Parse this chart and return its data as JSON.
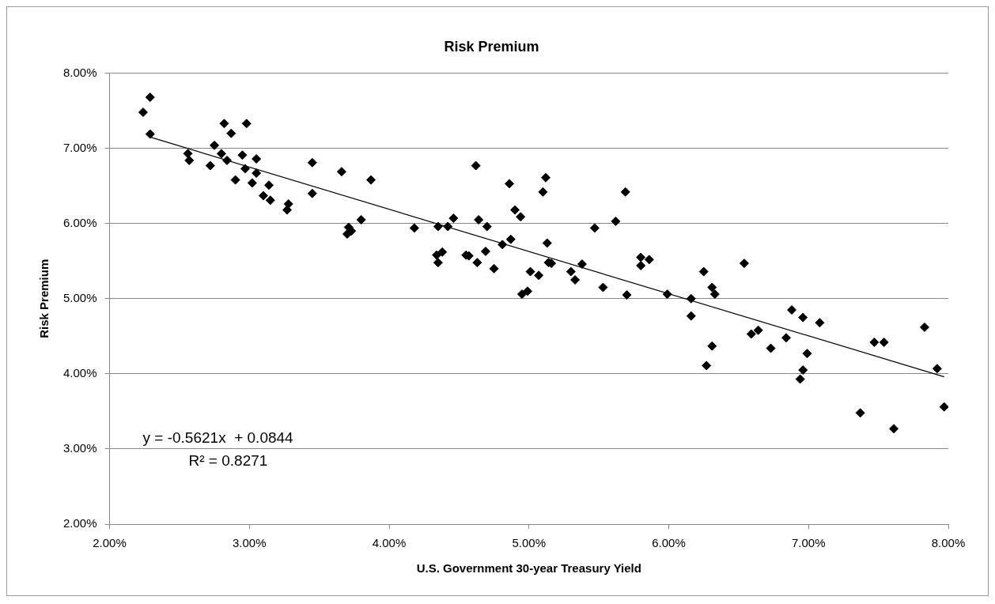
{
  "chart_data": {
    "type": "scatter",
    "title": "Risk Premium",
    "xlabel": "U.S. Government 30-year Treasury Yield",
    "ylabel": "Risk Premium",
    "xlim": [
      2,
      8
    ],
    "ylim": [
      2,
      8
    ],
    "xticks": [
      {
        "value": 2,
        "label": "2.00%"
      },
      {
        "value": 3,
        "label": "3.00%"
      },
      {
        "value": 4,
        "label": "4.00%"
      },
      {
        "value": 5,
        "label": "5.00%"
      },
      {
        "value": 6,
        "label": "6.00%"
      },
      {
        "value": 7,
        "label": "7.00%"
      },
      {
        "value": 8,
        "label": "8.00%"
      }
    ],
    "yticks": [
      {
        "value": 2,
        "label": "2.00%"
      },
      {
        "value": 3,
        "label": "3.00%"
      },
      {
        "value": 4,
        "label": "4.00%"
      },
      {
        "value": 5,
        "label": "5.00%"
      },
      {
        "value": 6,
        "label": "6.00%"
      },
      {
        "value": 7,
        "label": "7.00%"
      },
      {
        "value": 8,
        "label": "8.00%"
      }
    ],
    "grid": "y",
    "legend": false,
    "marker": "diamond",
    "annotations": [
      "y = -0.5621x  + 0.0844",
      "R² = 0.8271"
    ],
    "series": [
      {
        "type": "scatter",
        "color": "#000000",
        "x": [
          2.29,
          2.24,
          2.29,
          2.56,
          2.57,
          2.72,
          2.75,
          2.8,
          2.84,
          2.82,
          2.87,
          2.98,
          2.95,
          2.97,
          2.9,
          3.05,
          3.05,
          3.02,
          3.14,
          3.1,
          3.15,
          3.28,
          3.27,
          3.45,
          3.45,
          3.66,
          3.87,
          3.8,
          3.71,
          3.7,
          3.73,
          4.18,
          4.35,
          4.42,
          4.46,
          4.34,
          4.35,
          4.38,
          4.57,
          4.55,
          4.63,
          4.62,
          4.64,
          4.7,
          4.69,
          4.75,
          4.81,
          4.86,
          4.87,
          4.9,
          4.94,
          4.95,
          4.99,
          5.01,
          5.07,
          5.1,
          5.12,
          5.13,
          5.14,
          5.16,
          5.3,
          5.33,
          5.38,
          5.47,
          5.53,
          5.62,
          5.69,
          5.7,
          5.8,
          5.8,
          5.86,
          5.99,
          6.16,
          6.16,
          6.25,
          6.27,
          6.31,
          6.31,
          6.33,
          6.54,
          6.59,
          6.64,
          6.73,
          6.84,
          6.88,
          6.94,
          6.96,
          6.96,
          6.99,
          7.08,
          7.37,
          7.47,
          7.54,
          7.61,
          7.83,
          7.92,
          7.97
        ],
        "values": [
          7.68,
          7.48,
          7.19,
          6.93,
          6.84,
          6.77,
          7.04,
          6.93,
          6.84,
          7.33,
          7.2,
          7.33,
          6.91,
          6.73,
          6.58,
          6.86,
          6.67,
          6.54,
          6.51,
          6.37,
          6.31,
          6.26,
          6.18,
          6.81,
          6.4,
          6.69,
          6.58,
          6.05,
          5.95,
          5.86,
          5.9,
          5.94,
          5.96,
          5.96,
          6.07,
          5.58,
          5.48,
          5.62,
          5.57,
          5.58,
          5.48,
          6.77,
          6.05,
          5.96,
          5.63,
          5.4,
          5.72,
          6.53,
          5.79,
          6.18,
          6.09,
          5.06,
          5.1,
          5.36,
          5.31,
          6.42,
          6.61,
          5.74,
          5.48,
          5.47,
          5.36,
          5.25,
          5.46,
          5.94,
          5.15,
          6.03,
          6.42,
          5.05,
          5.55,
          5.44,
          5.52,
          5.06,
          5.0,
          4.77,
          5.36,
          4.11,
          5.15,
          4.37,
          5.06,
          5.47,
          4.53,
          4.58,
          4.34,
          4.48,
          4.85,
          3.93,
          4.75,
          4.05,
          4.27,
          4.68,
          3.48,
          4.42,
          4.42,
          3.27,
          4.62,
          4.07,
          3.56
        ]
      },
      {
        "type": "line",
        "color": "#000000",
        "marker": "none",
        "x": [
          2.29,
          7.97
        ],
        "values": [
          7.15,
          3.96
        ]
      }
    ]
  }
}
